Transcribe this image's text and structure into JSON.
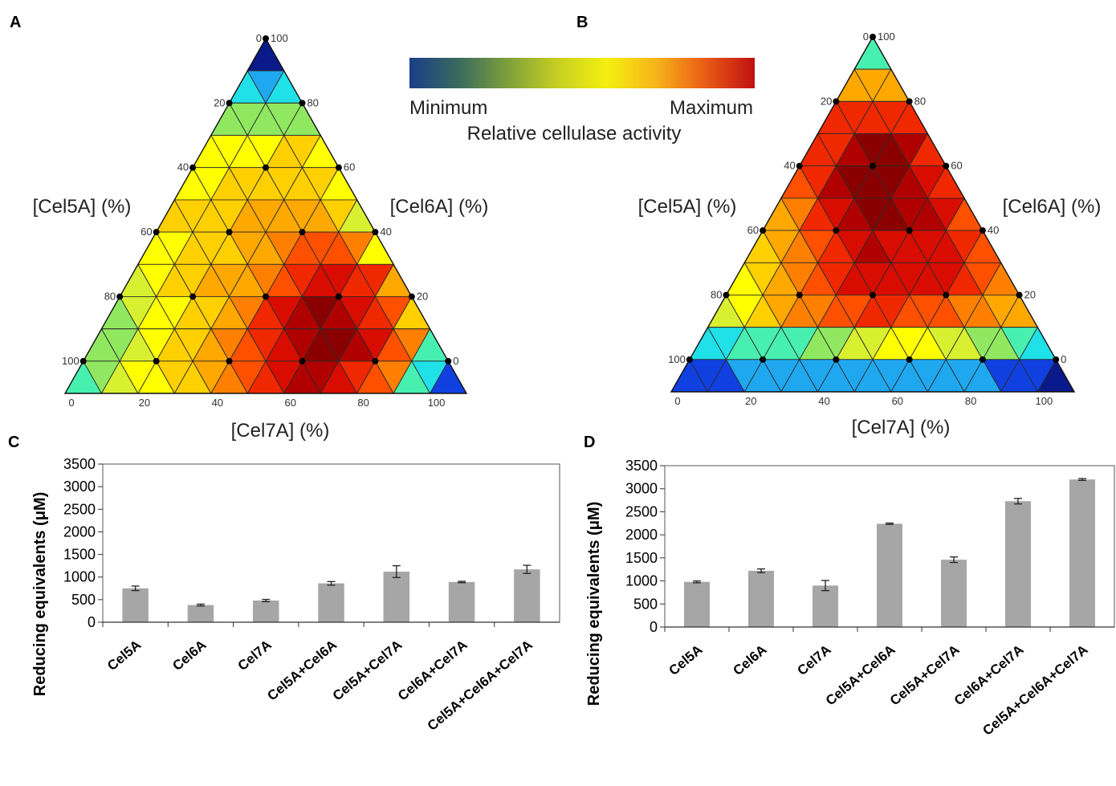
{
  "colorbar": {
    "min_label": "Minimum",
    "max_label": "Maximum",
    "title": "Relative cellulase activity",
    "stops": [
      "#1a3f86",
      "#3a6a5e",
      "#7ea03a",
      "#c6cf22",
      "#f4f00f",
      "#f7b41a",
      "#ea5b16",
      "#bf1010"
    ]
  },
  "palette": {
    "1": "#0a1a8a",
    "2": "#1040e0",
    "3": "#1fa8f0",
    "4": "#20e0e8",
    "5": "#48f0b0",
    "6": "#90e860",
    "7": "#d8f030",
    "8": "#ffff00",
    "9": "#ffd000",
    "10": "#ffa800",
    "11": "#ff8000",
    "12": "#ff5000",
    "13": "#f02800",
    "14": "#d80c00",
    "15": "#b00000",
    "16": "#8a0000"
  },
  "chart_data": [
    {
      "panel": "A",
      "type": "heatmap",
      "subtype": "ternary",
      "axes": {
        "left": {
          "label": "[Cel5A] (%)",
          "ticks": [
            "0",
            "20",
            "40",
            "60",
            "80",
            "100"
          ]
        },
        "right": {
          "label": "[Cel6A] (%)",
          "ticks": [
            "100",
            "80",
            "60",
            "40",
            "20",
            "0"
          ]
        },
        "bottom": {
          "label": "[Cel7A] (%)",
          "ticks": [
            "0",
            "20",
            "40",
            "60",
            "80",
            "100"
          ]
        }
      },
      "level_rows": [
        [
          1
        ],
        [
          4,
          3,
          4
        ],
        [
          6,
          6,
          6,
          6,
          6
        ],
        [
          8,
          8,
          8,
          8,
          9,
          9,
          8
        ],
        [
          8,
          8,
          9,
          9,
          9,
          9,
          9,
          9,
          8
        ],
        [
          9,
          9,
          9,
          9,
          10,
          10,
          10,
          10,
          10,
          9,
          7
        ],
        [
          8,
          8,
          9,
          9,
          9,
          10,
          10,
          11,
          12,
          12,
          12,
          11,
          8
        ],
        [
          7,
          8,
          9,
          9,
          10,
          10,
          10,
          11,
          12,
          13,
          14,
          14,
          13,
          13,
          10
        ],
        [
          6,
          7,
          8,
          8,
          9,
          9,
          10,
          11,
          13,
          14,
          15,
          16,
          15,
          14,
          13,
          12,
          9
        ],
        [
          6,
          6,
          7,
          8,
          9,
          9,
          10,
          11,
          12,
          13,
          14,
          15,
          16,
          16,
          15,
          14,
          12,
          11,
          5
        ],
        [
          5,
          6,
          7,
          8,
          8,
          9,
          9,
          10,
          11,
          12,
          13,
          14,
          15,
          15,
          14,
          13,
          12,
          11,
          5,
          4,
          2
        ]
      ]
    },
    {
      "panel": "B",
      "type": "heatmap",
      "subtype": "ternary",
      "axes": {
        "left": {
          "label": "[Cel5A] (%)",
          "ticks": [
            "0",
            "20",
            "40",
            "60",
            "80",
            "100"
          ]
        },
        "right": {
          "label": "[Cel6A] (%)",
          "ticks": [
            "100",
            "80",
            "60",
            "40",
            "20",
            "0"
          ]
        },
        "bottom": {
          "label": "[Cel7A] (%)",
          "ticks": [
            "0",
            "20",
            "40",
            "60",
            "80",
            "100"
          ]
        }
      },
      "level_rows": [
        [
          5
        ],
        [
          10,
          10,
          10
        ],
        [
          13,
          13,
          13,
          13,
          13
        ],
        [
          13,
          13,
          15,
          16,
          16,
          15,
          13
        ],
        [
          12,
          13,
          15,
          16,
          16,
          16,
          15,
          14,
          13
        ],
        [
          10,
          11,
          13,
          14,
          15,
          16,
          16,
          15,
          15,
          14,
          12
        ],
        [
          9,
          10,
          11,
          12,
          13,
          14,
          15,
          14,
          14,
          14,
          14,
          13,
          12
        ],
        [
          8,
          9,
          10,
          11,
          12,
          13,
          14,
          14,
          14,
          14,
          14,
          14,
          13,
          12,
          11
        ],
        [
          7,
          8,
          9,
          10,
          11,
          11,
          12,
          12,
          13,
          13,
          12,
          12,
          12,
          11,
          11,
          10,
          10
        ],
        [
          4,
          4,
          5,
          5,
          5,
          5,
          6,
          6,
          7,
          7,
          8,
          8,
          8,
          7,
          7,
          6,
          6,
          5,
          4
        ],
        [
          2,
          2,
          2,
          3,
          3,
          3,
          3,
          3,
          3,
          3,
          3,
          3,
          3,
          3,
          3,
          3,
          3,
          2,
          2,
          2,
          1
        ]
      ]
    },
    {
      "panel": "C",
      "type": "bar",
      "categories": [
        "Cel5A",
        "Cel6A",
        "Cel7A",
        "Cel5A+Cel6A",
        "Cel5A+Cel7A",
        "Cel6A+Cel7A",
        "Cel5A+Cel6A+Cel7A"
      ],
      "values": [
        750,
        380,
        480,
        860,
        1120,
        890,
        1170
      ],
      "errors": [
        50,
        20,
        25,
        40,
        130,
        15,
        90
      ],
      "ylabel": "Reducing equivalents (μM)",
      "ylim": [
        0,
        3500
      ],
      "yticks": [
        "0",
        "500",
        "1000",
        "1500",
        "2000",
        "2500",
        "3000",
        "3500"
      ],
      "bar_color": "#a6a6a6",
      "grid": false
    },
    {
      "panel": "D",
      "type": "bar",
      "categories": [
        "Cel5A",
        "Cel6A",
        "Cel7A",
        "Cel5A+Cel6A",
        "Cel5A+Cel7A",
        "Cel6A+Cel7A",
        "Cel5A+Cel6A+Cel7A"
      ],
      "values": [
        980,
        1220,
        900,
        2240,
        1460,
        2730,
        3200
      ],
      "errors": [
        20,
        40,
        110,
        15,
        60,
        60,
        20
      ],
      "ylabel": "Reducing equivalents (μM)",
      "ylim": [
        0,
        3500
      ],
      "yticks": [
        "0",
        "500",
        "1000",
        "1500",
        "2000",
        "2500",
        "3000",
        "3500"
      ],
      "bar_color": "#a6a6a6",
      "grid": false
    }
  ],
  "panel_letters": [
    "A",
    "B",
    "C",
    "D"
  ]
}
